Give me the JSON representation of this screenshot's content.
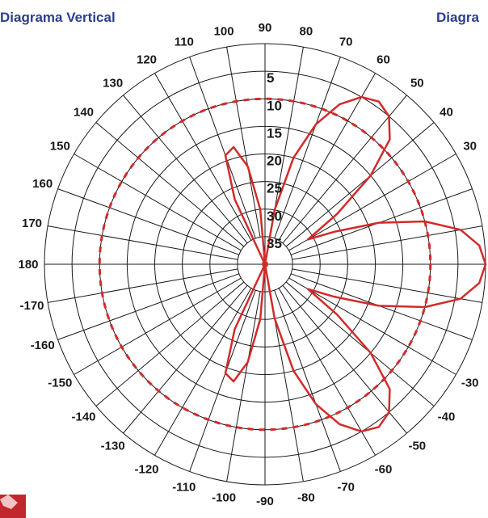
{
  "title_left": "Diagrama Vertical",
  "title_right": "Diagra",
  "colors": {
    "title": "#2b3f8c",
    "grid": "#1a1a1a",
    "pattern": "#d42a2a",
    "logo": "#c0282e"
  },
  "chart_data": {
    "type": "polar",
    "title": "Diagrama Vertical",
    "angle_labels": [
      {
        "deg": 90,
        "text": "90"
      },
      {
        "deg": 80,
        "text": "80"
      },
      {
        "deg": 70,
        "text": "70"
      },
      {
        "deg": 60,
        "text": "60"
      },
      {
        "deg": 50,
        "text": "50"
      },
      {
        "deg": 40,
        "text": "40"
      },
      {
        "deg": 30,
        "text": "30"
      },
      {
        "deg": 100,
        "text": "100"
      },
      {
        "deg": 110,
        "text": "110"
      },
      {
        "deg": 120,
        "text": "120"
      },
      {
        "deg": 130,
        "text": "130"
      },
      {
        "deg": 140,
        "text": "140"
      },
      {
        "deg": 150,
        "text": "150"
      },
      {
        "deg": 160,
        "text": "160"
      },
      {
        "deg": 170,
        "text": "170"
      },
      {
        "deg": 180,
        "text": "180"
      },
      {
        "deg": -170,
        "text": "-170"
      },
      {
        "deg": -160,
        "text": "-160"
      },
      {
        "deg": -150,
        "text": "-150"
      },
      {
        "deg": -140,
        "text": "-140"
      },
      {
        "deg": -130,
        "text": "-130"
      },
      {
        "deg": -120,
        "text": "-120"
      },
      {
        "deg": -110,
        "text": "-110"
      },
      {
        "deg": -100,
        "text": "-100"
      },
      {
        "deg": -90,
        "text": "-90"
      },
      {
        "deg": -80,
        "text": "-80"
      },
      {
        "deg": -70,
        "text": "-70"
      },
      {
        "deg": -60,
        "text": "-60"
      },
      {
        "deg": -50,
        "text": "-50"
      },
      {
        "deg": -40,
        "text": "-40"
      },
      {
        "deg": -30,
        "text": "-30"
      }
    ],
    "ring_labels": [
      "5",
      "10",
      "15",
      "20",
      "25",
      "30",
      "35"
    ],
    "ring_values": [
      5,
      10,
      15,
      20,
      25,
      30,
      35
    ],
    "radial_range_db": [
      0,
      40
    ],
    "grid": true,
    "series": [
      {
        "style": "solid",
        "points": [
          {
            "deg": 0,
            "db": 0
          },
          {
            "deg": 5,
            "db": 1
          },
          {
            "deg": 10,
            "db": 4
          },
          {
            "deg": 15,
            "db": 10
          },
          {
            "deg": 20,
            "db": 18
          },
          {
            "deg": 25,
            "db": 26
          },
          {
            "deg": 30,
            "db": 31
          },
          {
            "deg": 35,
            "db": 24
          },
          {
            "deg": 40,
            "db": 15
          },
          {
            "deg": 45,
            "db": 8
          },
          {
            "deg": 50,
            "db": 5
          },
          {
            "deg": 55,
            "db": 4
          },
          {
            "deg": 60,
            "db": 5
          },
          {
            "deg": 65,
            "db": 8
          },
          {
            "deg": 70,
            "db": 13
          },
          {
            "deg": 75,
            "db": 20
          },
          {
            "deg": 80,
            "db": 30
          },
          {
            "deg": 85,
            "db": 40
          },
          {
            "deg": 90,
            "db": 40
          },
          {
            "deg": 95,
            "db": 30
          },
          {
            "deg": 100,
            "db": 22
          },
          {
            "deg": 105,
            "db": 18
          },
          {
            "deg": 110,
            "db": 19
          },
          {
            "deg": 115,
            "db": 27
          },
          {
            "deg": 118,
            "db": 40
          },
          {
            "deg": -118,
            "db": 40
          },
          {
            "deg": -115,
            "db": 27
          },
          {
            "deg": -110,
            "db": 19
          },
          {
            "deg": -105,
            "db": 18
          },
          {
            "deg": -100,
            "db": 22
          },
          {
            "deg": -95,
            "db": 30
          },
          {
            "deg": -90,
            "db": 40
          },
          {
            "deg": -85,
            "db": 40
          },
          {
            "deg": -80,
            "db": 30
          },
          {
            "deg": -75,
            "db": 20
          },
          {
            "deg": -70,
            "db": 13
          },
          {
            "deg": -65,
            "db": 8
          },
          {
            "deg": -60,
            "db": 5
          },
          {
            "deg": -55,
            "db": 4
          },
          {
            "deg": -50,
            "db": 5
          },
          {
            "deg": -45,
            "db": 8
          },
          {
            "deg": -40,
            "db": 15
          },
          {
            "deg": -35,
            "db": 24
          },
          {
            "deg": -30,
            "db": 31
          },
          {
            "deg": -25,
            "db": 26
          },
          {
            "deg": -20,
            "db": 18
          },
          {
            "deg": -15,
            "db": 10
          },
          {
            "deg": -10,
            "db": 4
          },
          {
            "deg": -5,
            "db": 1
          },
          {
            "deg": 0,
            "db": 0
          }
        ]
      },
      {
        "style": "dashed",
        "constant_db": 10
      }
    ]
  }
}
